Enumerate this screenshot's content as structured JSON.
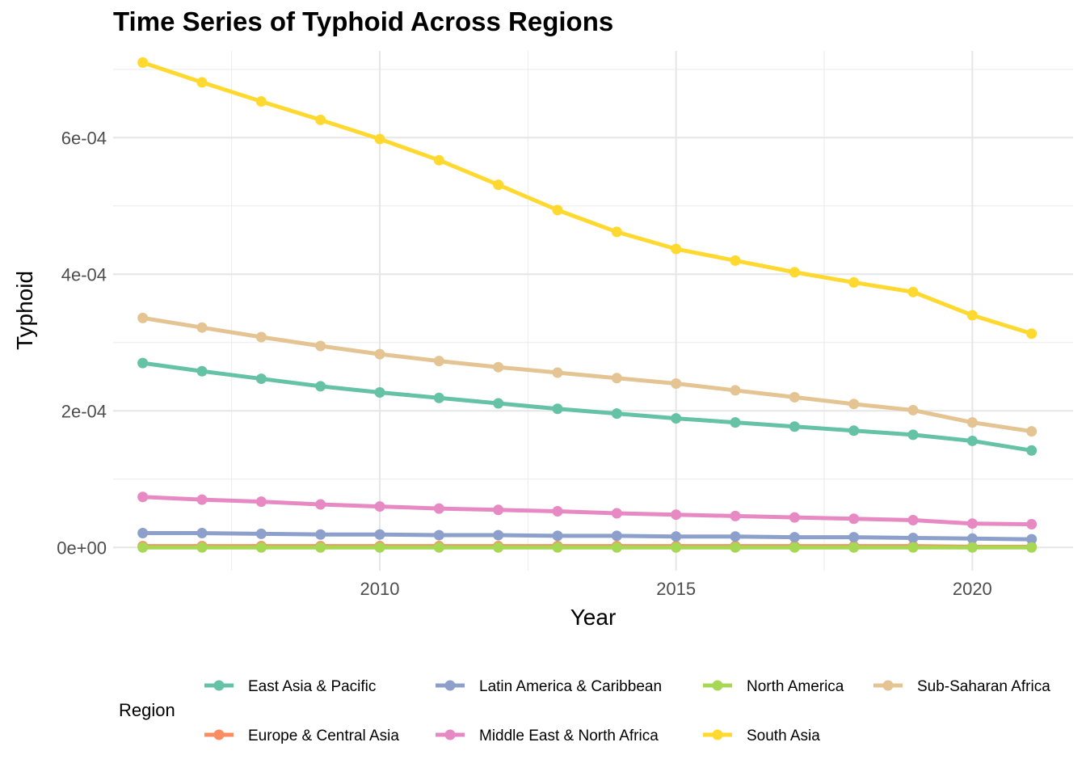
{
  "chart_data": {
    "type": "line",
    "title": "Time Series of Typhoid Across Regions",
    "xlabel": "Year",
    "ylabel": "Typhoid",
    "x": [
      2006,
      2007,
      2008,
      2009,
      2010,
      2011,
      2012,
      2013,
      2014,
      2015,
      2016,
      2017,
      2018,
      2019,
      2020,
      2021
    ],
    "xlim": [
      2005.5,
      2021.7
    ],
    "ylim": [
      -3.4e-05,
      0.000727
    ],
    "x_ticks": [
      2010,
      2015,
      2020
    ],
    "x_tick_labels": [
      "2010",
      "2015",
      "2020"
    ],
    "y_ticks": [
      0,
      0.0002,
      0.0004,
      0.0006
    ],
    "y_tick_labels": [
      "0e+00",
      "2e-04",
      "4e-04",
      "6e-04"
    ],
    "grid": true,
    "legend_title": "Region",
    "legend_position": "bottom",
    "series": [
      {
        "name": "East Asia & Pacific",
        "color": "#66C2A5",
        "values": [
          0.00027,
          0.000258,
          0.000247,
          0.000236,
          0.000227,
          0.000219,
          0.000211,
          0.000203,
          0.000196,
          0.000189,
          0.000183,
          0.000177,
          0.000171,
          0.000165,
          0.000156,
          0.000142
        ]
      },
      {
        "name": "Europe & Central Asia",
        "color": "#FC8D62",
        "values": [
          2e-06,
          2e-06,
          2e-06,
          2e-06,
          2e-06,
          2e-06,
          2e-06,
          2e-06,
          2e-06,
          2e-06,
          2e-06,
          2e-06,
          2e-06,
          2e-06,
          1e-06,
          1e-06
        ]
      },
      {
        "name": "Latin America & Caribbean",
        "color": "#8DA0CB",
        "values": [
          2.1e-05,
          2.1e-05,
          2e-05,
          1.9e-05,
          1.9e-05,
          1.8e-05,
          1.8e-05,
          1.7e-05,
          1.7e-05,
          1.6e-05,
          1.6e-05,
          1.5e-05,
          1.5e-05,
          1.4e-05,
          1.3e-05,
          1.2e-05
        ]
      },
      {
        "name": "Middle East & North Africa",
        "color": "#E78AC3",
        "values": [
          7.4e-05,
          7e-05,
          6.7e-05,
          6.3e-05,
          6e-05,
          5.7e-05,
          5.5e-05,
          5.3e-05,
          5e-05,
          4.8e-05,
          4.6e-05,
          4.4e-05,
          4.2e-05,
          4e-05,
          3.5e-05,
          3.4e-05
        ]
      },
      {
        "name": "North America",
        "color": "#A6D854",
        "values": [
          0,
          0,
          0,
          0,
          0,
          0,
          0,
          0,
          0,
          0,
          0,
          0,
          0,
          0,
          0,
          0
        ]
      },
      {
        "name": "South Asia",
        "color": "#FFD92F",
        "values": [
          0.00071,
          0.000681,
          0.000653,
          0.000626,
          0.000598,
          0.000567,
          0.000531,
          0.000494,
          0.000462,
          0.000437,
          0.00042,
          0.000403,
          0.000388,
          0.000374,
          0.00034,
          0.000313
        ]
      },
      {
        "name": "Sub-Saharan Africa",
        "color": "#E5C494",
        "values": [
          0.000336,
          0.000322,
          0.000308,
          0.000295,
          0.000283,
          0.000273,
          0.000264,
          0.000256,
          0.000248,
          0.00024,
          0.00023,
          0.00022,
          0.00021,
          0.000201,
          0.000183,
          0.00017
        ]
      }
    ]
  }
}
